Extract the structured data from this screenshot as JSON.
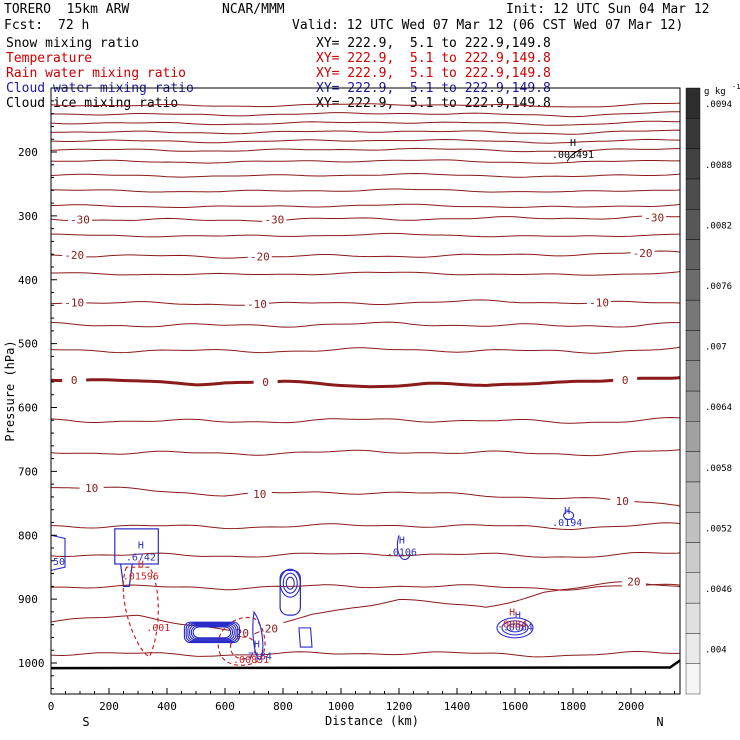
{
  "header": {
    "model": "TORERO  15km ARW",
    "org": "NCAR/MMM",
    "init": "Init: 12 UTC Sun 04 Mar 12",
    "fcst_label": "Fcst:",
    "fcst_value": "72 h",
    "valid": "Valid: 12 UTC Wed 07 Mar 12 (06 CST Wed 07 Mar 12)"
  },
  "legend": [
    {
      "name": "Snow mixing ratio",
      "coords": "XY= 222.9,  5.1 to 222.9,149.8",
      "color": "#000000"
    },
    {
      "name": "Temperature",
      "coords": "XY= 222.9,  5.1 to 222.9,149.8",
      "color": "#cc0000"
    },
    {
      "name": "Rain water mixing ratio",
      "coords": "XY= 222.9,  5.1 to 222.9,149.8",
      "color": "#cc0000"
    },
    {
      "name": "Cloud water mixing ratio",
      "coords": "XY= 222.9,  5.1 to 222.9,149.8",
      "color": "#1a1aa0"
    },
    {
      "name": "Cloud ice mixing ratio",
      "coords": "XY= 222.9,  5.1 to 222.9,149.8",
      "color": "#000000"
    }
  ],
  "chart_data": {
    "type": "contour",
    "xlabel": "Distance (km)",
    "ylabel": "Pressure (hPa)",
    "xlim": [
      0,
      2180
    ],
    "ylim": [
      1050,
      100
    ],
    "x_ticks": [
      0,
      200,
      400,
      600,
      800,
      1000,
      1200,
      1400,
      1600,
      1800,
      2000
    ],
    "y_ticks": [
      200,
      300,
      400,
      500,
      600,
      700,
      800,
      900,
      1000
    ],
    "x_end_labels": {
      "left": "S",
      "right": "N"
    },
    "temperature_lines": [
      {
        "label": "-30",
        "p": [
          [
            0,
            305
          ],
          [
            500,
            307
          ],
          [
            1000,
            305
          ],
          [
            1500,
            304
          ],
          [
            2180,
            302
          ]
        ],
        "label_x": [
          100,
          770,
          2080
        ]
      },
      {
        "label": "-20",
        "p": [
          [
            0,
            361
          ],
          [
            500,
            364
          ],
          [
            1000,
            363
          ],
          [
            1500,
            362
          ],
          [
            2180,
            357
          ]
        ],
        "label_x": [
          80,
          720,
          2040
        ]
      },
      {
        "label": "-10",
        "p": [
          [
            0,
            435
          ],
          [
            500,
            438
          ],
          [
            1000,
            437
          ],
          [
            1500,
            434
          ],
          [
            2180,
            437
          ]
        ],
        "label_x": [
          80,
          710,
          1890
        ]
      },
      {
        "label": "0",
        "p": [
          [
            0,
            556
          ],
          [
            300,
            559
          ],
          [
            500,
            563
          ],
          [
            600,
            561
          ],
          [
            800,
            560
          ],
          [
            1100,
            567
          ],
          [
            1300,
            563
          ],
          [
            1500,
            566
          ],
          [
            1700,
            560
          ],
          [
            1900,
            559
          ],
          [
            2180,
            552
          ]
        ],
        "label_x": [
          80,
          740,
          1980
        ]
      },
      {
        "label": "10",
        "p": [
          [
            0,
            725
          ],
          [
            300,
            728
          ],
          [
            600,
            737
          ],
          [
            900,
            733
          ],
          [
            1200,
            733
          ],
          [
            1500,
            738
          ],
          [
            1800,
            742
          ],
          [
            2180,
            752
          ]
        ],
        "label_x": [
          140,
          720,
          1970
        ]
      },
      {
        "label": "20",
        "p": [
          [
            0,
            935
          ],
          [
            300,
            926
          ],
          [
            600,
            948
          ],
          [
            700,
            956
          ],
          [
            900,
            922
          ],
          [
            1200,
            902
          ],
          [
            1500,
            912
          ],
          [
            1700,
            890
          ],
          [
            2000,
            872
          ],
          [
            2180,
            880
          ]
        ],
        "label_x": [
          660,
          760,
          2010
        ]
      }
    ],
    "temperature_unlabeled_levels_hpa": [
      126,
      140,
      154,
      168,
      182,
      196,
      214,
      236,
      260,
      284,
      330,
      390,
      470,
      510,
      620,
      670,
      785,
      830,
      880,
      985
    ],
    "contour_extrema": [
      {
        "marker": "H",
        "value": ".003491",
        "x": 1800,
        "p": 200,
        "field": "snow"
      },
      {
        "marker": "H",
        "value": ".0194",
        "x": 1780,
        "p": 776,
        "field": "cloud_water"
      },
      {
        "marker": "H",
        "value": ".0106",
        "x": 1210,
        "p": 822,
        "field": "cloud_water"
      },
      {
        "marker": "H",
        "value": ".6742",
        "x": 310,
        "p": 830,
        "field": "cloud_water"
      },
      {
        "marker": "H",
        "value": ".01596",
        "x": 310,
        "p": 860,
        "field": "rain"
      },
      {
        "marker": "H",
        "value": ".0084",
        "x": 1610,
        "p": 940,
        "field": "cloud_water"
      },
      {
        "marker": "H",
        "value": ".7184",
        "x": 710,
        "p": 985,
        "field": "cloud_water"
      },
      {
        "marker": "H",
        "value": ".0084",
        "x": 1590,
        "p": 935,
        "field": "rain"
      }
    ],
    "rain_labels": [
      {
        "value": ".001",
        "x": 370,
        "p": 950
      },
      {
        "value": ".00831",
        "x": 690,
        "p": 1000
      }
    ],
    "side_labels": [
      {
        "value": "50",
        "p": 840
      }
    ],
    "colorbar": {
      "unit": "g kg",
      "unit_exp": "-1",
      "ticks": [
        ".004",
        ".0046",
        ".0052",
        ".0058",
        ".0064",
        ".007",
        ".0076",
        ".0082",
        ".0088",
        ".0094"
      ]
    }
  }
}
